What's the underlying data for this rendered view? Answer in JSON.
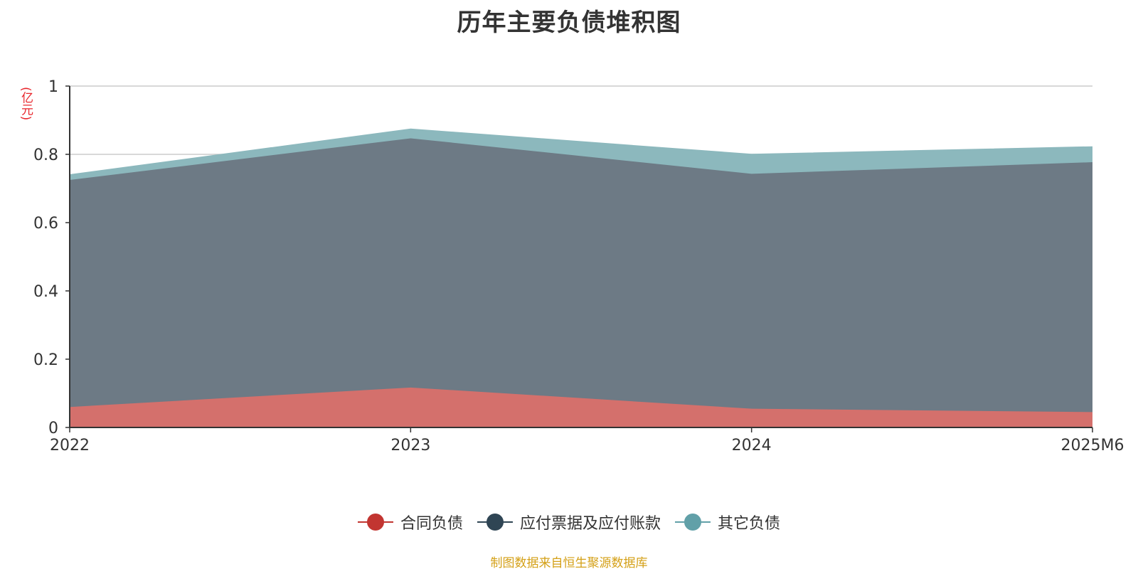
{
  "chart_data": {
    "type": "area",
    "stacked": true,
    "title": "历年主要负债堆积图",
    "y_unit": "(亿元)",
    "categories": [
      "2022",
      "2023",
      "2024",
      "2025M6"
    ],
    "ylim": [
      0,
      1
    ],
    "yticks": [
      "0",
      "0.2",
      "0.4",
      "0.6",
      "0.8",
      "1"
    ],
    "grid": true,
    "legend_position": "bottom",
    "series": [
      {
        "name": "合同负债",
        "color": "#c23531",
        "fill": "#d4706c",
        "values": [
          0.06,
          0.117,
          0.055,
          0.045
        ]
      },
      {
        "name": "应付票据及应付账款",
        "color": "#2f4554",
        "fill": "#6d7a85",
        "values": [
          0.665,
          0.73,
          0.688,
          0.732
        ]
      },
      {
        "name": "其它负债",
        "color": "#61a0a8",
        "fill": "#8cb8bd",
        "values": [
          0.015,
          0.027,
          0.057,
          0.045
        ]
      }
    ]
  },
  "source_note": "制图数据来自恒生聚源数据库"
}
